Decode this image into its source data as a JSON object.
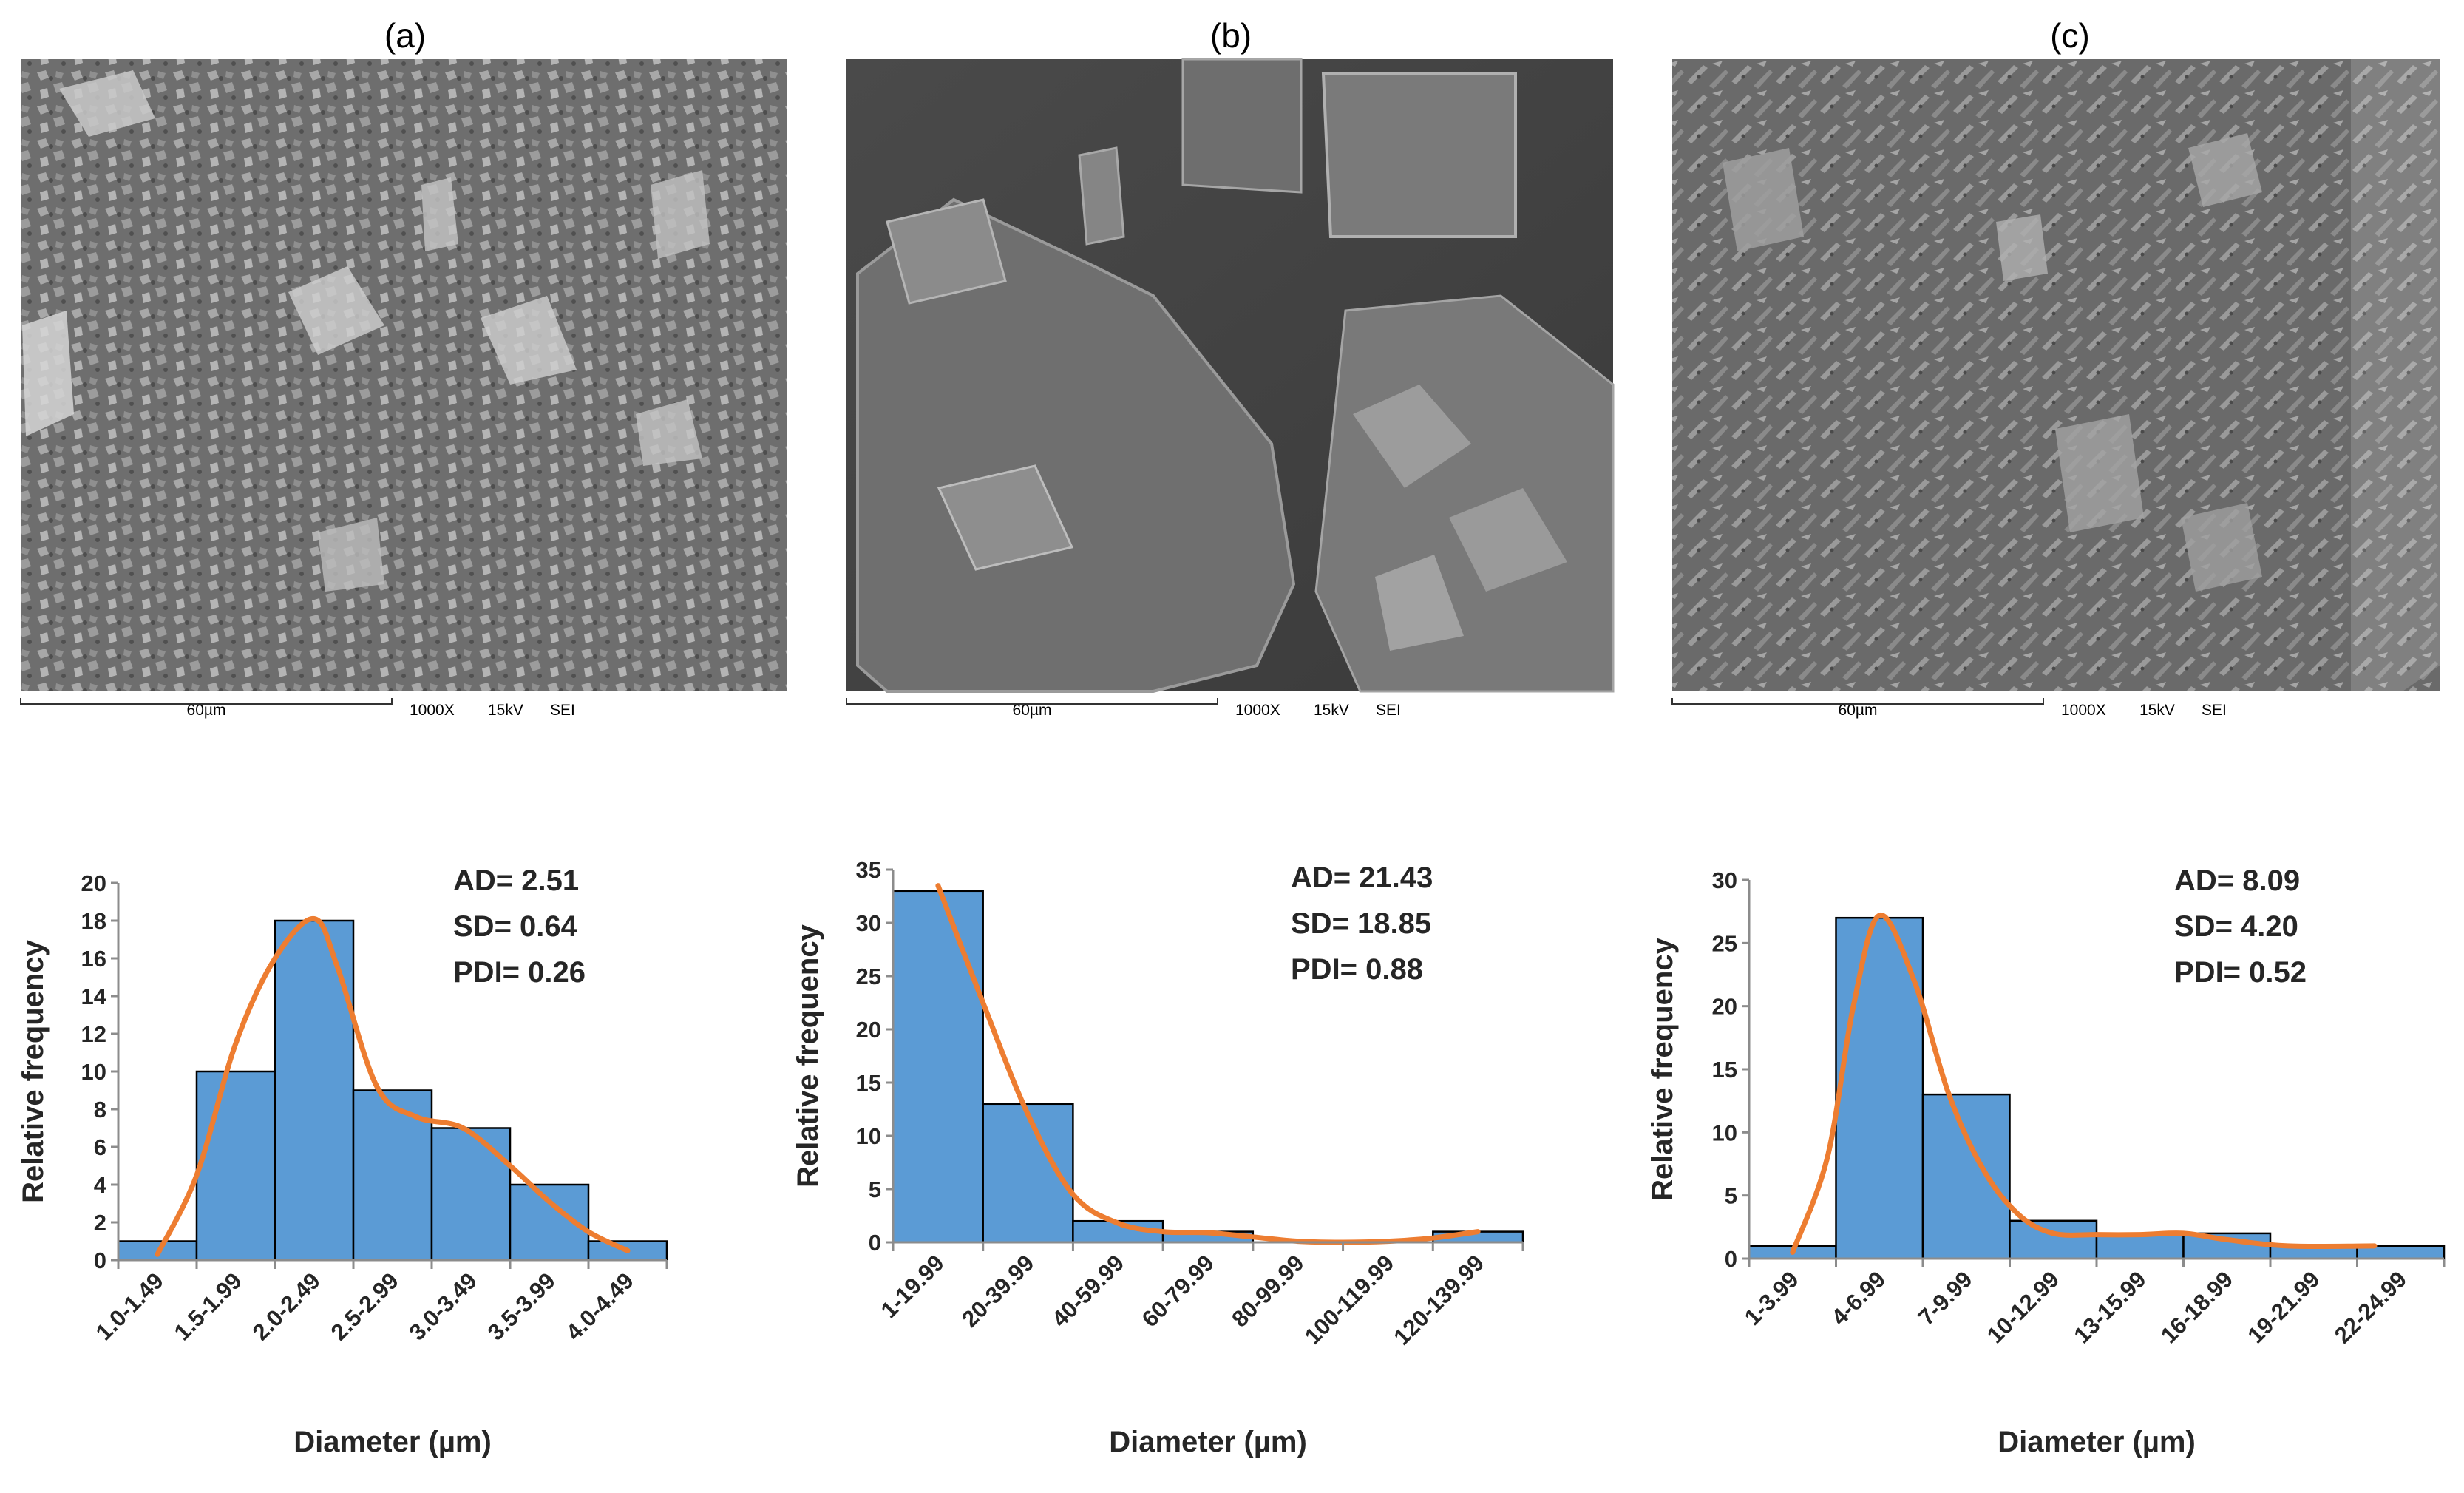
{
  "panels": [
    {
      "label": "(a)",
      "scale_bar": "60µm",
      "magnification": "1000X",
      "voltage": "15kV",
      "detector": "SEI"
    },
    {
      "label": "(b)",
      "scale_bar": "60µm",
      "magnification": "1000X",
      "voltage": "15kV",
      "detector": "SEI"
    },
    {
      "label": "(c)",
      "scale_bar": "60µm",
      "magnification": "1000X",
      "voltage": "15kV",
      "detector": "SEI"
    }
  ],
  "colors": {
    "bar_fill": "#5B9BD5",
    "bar_edge": "#000000",
    "fit_curve": "#ED7D31",
    "axis": "#8c8c8c",
    "text": "#262626"
  },
  "chart_data": [
    {
      "type": "bar",
      "panel": "(a)",
      "categories": [
        "1.0-1.49",
        "1.5-1.99",
        "2.0-2.49",
        "2.5-2.99",
        "3.0-3.49",
        "3.5-3.99",
        "4.0-4.49"
      ],
      "values": [
        1,
        10,
        18,
        9,
        7,
        4,
        1
      ],
      "xlabel": "Diameter (µm)",
      "ylabel": "Relative frequency",
      "ylim": [
        0,
        20
      ],
      "yticks": [
        0,
        2,
        4,
        6,
        8,
        10,
        12,
        14,
        16,
        18,
        20
      ],
      "stats": [
        "AD= 2.51",
        "SD= 0.64",
        "PDI= 0.26"
      ],
      "fit_curve": [
        [
          0.5,
          0.3
        ],
        [
          1.0,
          4.5
        ],
        [
          1.5,
          11.5
        ],
        [
          2.0,
          16.0
        ],
        [
          2.5,
          18.1
        ],
        [
          2.8,
          15.5
        ],
        [
          3.3,
          9.2
        ],
        [
          3.8,
          7.6
        ],
        [
          4.4,
          7.0
        ],
        [
          5.0,
          5.0
        ],
        [
          5.5,
          3.1
        ],
        [
          6.0,
          1.5
        ],
        [
          6.5,
          0.5
        ]
      ],
      "grid": false,
      "legend": "none"
    },
    {
      "type": "bar",
      "panel": "(b)",
      "categories": [
        "1-19.99",
        "20-39.99",
        "40-59.99",
        "60-79.99",
        "80-99.99",
        "100-119.99",
        "120-139.99"
      ],
      "values": [
        33,
        13,
        2,
        1,
        0,
        0,
        1
      ],
      "xlabel": "Diameter (µm)",
      "ylabel": "Relative frequency",
      "ylim": [
        0,
        35
      ],
      "yticks": [
        0,
        5,
        10,
        15,
        20,
        25,
        30,
        35
      ],
      "stats": [
        "AD= 21.43",
        "SD= 18.85",
        "PDI= 0.88"
      ],
      "fit_curve": [
        [
          0.5,
          33.5
        ],
        [
          1.0,
          22.5
        ],
        [
          1.5,
          12.0
        ],
        [
          2.0,
          4.5
        ],
        [
          2.5,
          1.8
        ],
        [
          3.0,
          1.0
        ],
        [
          3.5,
          0.9
        ],
        [
          4.0,
          0.5
        ],
        [
          4.5,
          0.1
        ],
        [
          5.0,
          0.0
        ],
        [
          5.5,
          0.1
        ],
        [
          6.0,
          0.4
        ],
        [
          6.5,
          1.0
        ]
      ],
      "grid": false,
      "legend": "none"
    },
    {
      "type": "bar",
      "panel": "(c)",
      "categories": [
        "1-3.99",
        "4-6.99",
        "7-9.99",
        "10-12.99",
        "13-15.99",
        "16-18.99",
        "19-21.99",
        "22-24.99"
      ],
      "values": [
        1,
        27,
        13,
        3,
        2,
        2,
        1,
        1
      ],
      "xlabel": "Diameter (µm)",
      "ylabel": "Relative frequency",
      "ylim": [
        0,
        30
      ],
      "yticks": [
        0,
        5,
        10,
        15,
        20,
        25,
        30
      ],
      "stats": [
        "AD= 8.09",
        "SD= 4.20",
        "PDI= 0.52"
      ],
      "fit_curve": [
        [
          0.5,
          0.5
        ],
        [
          0.9,
          8.0
        ],
        [
          1.2,
          20.0
        ],
        [
          1.5,
          27.2
        ],
        [
          1.9,
          22.0
        ],
        [
          2.3,
          13.0
        ],
        [
          2.7,
          7.0
        ],
        [
          3.1,
          3.5
        ],
        [
          3.5,
          2.0
        ],
        [
          4.0,
          1.9
        ],
        [
          4.5,
          1.9
        ],
        [
          5.0,
          2.0
        ],
        [
          5.5,
          1.5
        ],
        [
          6.2,
          1.0
        ],
        [
          7.2,
          1.0
        ]
      ],
      "grid": false,
      "legend": "none"
    }
  ]
}
